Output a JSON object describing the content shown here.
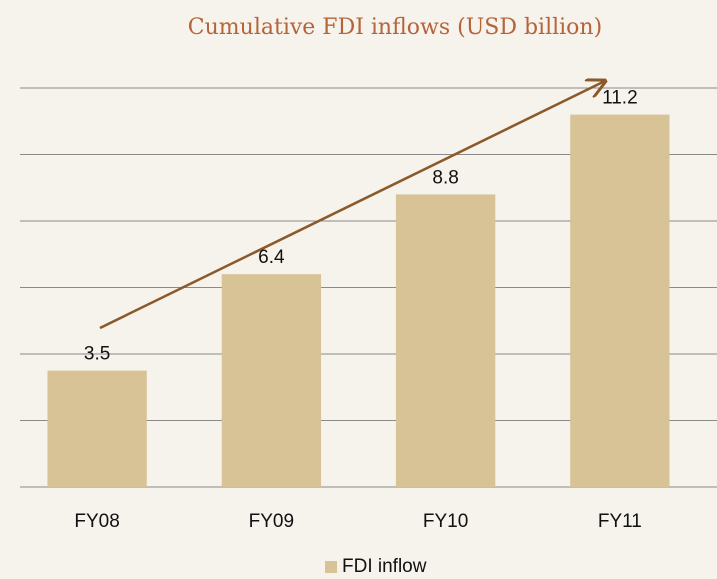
{
  "chart_data": {
    "type": "bar",
    "title": "Cumulative FDI inflows (USD billion)",
    "categories": [
      "FY08",
      "FY09",
      "FY10",
      "FY11"
    ],
    "series": [
      {
        "name": "FDI inflow",
        "color": "#d8c396",
        "values": [
          3.5,
          6.4,
          8.8,
          11.2
        ]
      }
    ],
    "ylim": [
      0,
      12
    ],
    "yticks": [
      0,
      2,
      4,
      6,
      8,
      10,
      12
    ],
    "grid": true,
    "legend": "bottom"
  }
}
